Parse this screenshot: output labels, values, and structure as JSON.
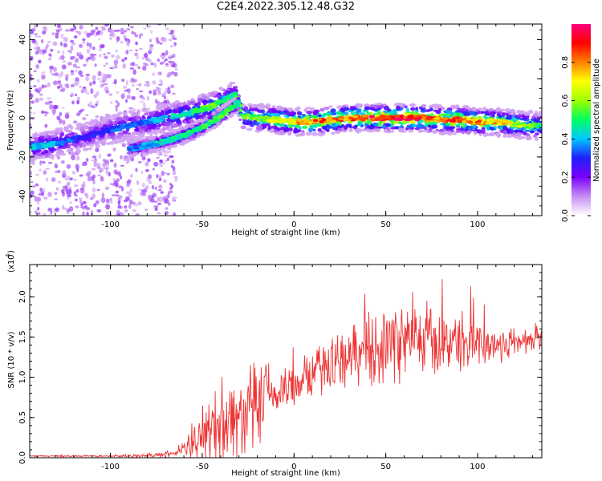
{
  "figure": {
    "title": "C2E4.2022.305.12.48.G32"
  },
  "chart_data": [
    {
      "type": "heatmap",
      "title": "C2E4.2022.305.12.48.G32",
      "xlabel": "Height of straight line (km)",
      "ylabel": "Frequency (Hz)",
      "xlim": [
        -144,
        135
      ],
      "ylim": [
        -50,
        48
      ],
      "xticks": [
        -100,
        -50,
        0,
        50,
        100
      ],
      "yticks": [
        -40,
        -20,
        0,
        20,
        40
      ],
      "colorbar": {
        "label": "Normalized spectral amplitude",
        "range": [
          0.0,
          1.0
        ],
        "ticks": [
          0.0,
          0.2,
          0.4,
          0.6,
          0.8
        ],
        "tick_labels": [
          "0.0",
          "0.2",
          "0.4",
          "0.6",
          "0.8"
        ],
        "colormap": [
          "#ffffff",
          "#c58cf0",
          "#7a00ff",
          "#2020ff",
          "#00c8ff",
          "#00ff60",
          "#a0ff00",
          "#ffff00",
          "#ff8000",
          "#ff0000",
          "#ff0080"
        ]
      },
      "ridge": {
        "x": [
          -144,
          -135,
          -125,
          -115,
          -105,
          -95,
          -85,
          -75,
          -65,
          -55,
          -45,
          -38,
          -32,
          -28,
          -20,
          -10,
          0,
          10,
          20,
          30,
          40,
          50,
          60,
          70,
          80,
          90,
          100,
          110,
          120,
          130,
          135
        ],
        "frequency": [
          -15,
          -14,
          -12,
          -10,
          -7,
          -5,
          -3,
          -1,
          1,
          3,
          6,
          9,
          12,
          1,
          0,
          -1,
          -2,
          -2,
          -1,
          0,
          0,
          0,
          0,
          0,
          -1,
          -1,
          -2,
          -2,
          -3,
          -4,
          -4
        ],
        "amplitude": [
          0.4,
          0.45,
          0.35,
          0.3,
          0.3,
          0.35,
          0.35,
          0.4,
          0.45,
          0.5,
          0.55,
          0.5,
          0.5,
          0.55,
          0.6,
          0.65,
          0.75,
          0.8,
          0.85,
          0.85,
          0.9,
          0.95,
          0.95,
          0.9,
          0.85,
          0.85,
          0.8,
          0.75,
          0.65,
          0.55,
          0.5
        ]
      },
      "secondary_ridge": {
        "x": [
          -90,
          -80,
          -70,
          -60,
          -50,
          -40,
          -30
        ],
        "frequency": [
          -16,
          -14,
          -12,
          -9,
          -5,
          1,
          8
        ],
        "amplitude": [
          0.35,
          0.4,
          0.45,
          0.5,
          0.5,
          0.55,
          0.5
        ]
      }
    },
    {
      "type": "line",
      "xlabel": "Height of straight line (km)",
      "ylabel": "SNR (10 * v/v)",
      "y_multiplier_label": "(x10",
      "y_multiplier_exp": "4",
      "y_multiplier_close": ")",
      "xlim": [
        -144,
        135
      ],
      "ylim": [
        0.0,
        2.4
      ],
      "xticks": [
        -100,
        -50,
        0,
        50,
        100
      ],
      "yticks": [
        0.0,
        0.5,
        1.0,
        1.5,
        2.0
      ],
      "ytick_labels": [
        "0.0",
        "0.5",
        "1.0",
        "1.5",
        "2.0"
      ],
      "color": "#ee3333",
      "series": [
        {
          "x": [
            -144,
            -130,
            -120,
            -110,
            -100,
            -90,
            -80,
            -70,
            -65,
            -60,
            -56,
            -52,
            -50,
            -45,
            -40,
            -35,
            -30,
            -25,
            -20,
            -15,
            -10,
            -5,
            0,
            5,
            10,
            15,
            20,
            25,
            30,
            35,
            40,
            45,
            50,
            55,
            60,
            65,
            70,
            75,
            80,
            85,
            90,
            95,
            100,
            105,
            110,
            115,
            120,
            125,
            130,
            135
          ],
          "mean": [
            0.02,
            0.02,
            0.02,
            0.02,
            0.02,
            0.02,
            0.03,
            0.04,
            0.06,
            0.1,
            0.15,
            0.2,
            0.25,
            0.35,
            0.45,
            0.5,
            0.5,
            0.55,
            0.6,
            0.7,
            0.8,
            0.85,
            0.9,
            1.0,
            1.05,
            1.1,
            1.15,
            1.2,
            1.25,
            1.3,
            1.35,
            1.4,
            1.4,
            1.45,
            1.45,
            1.45,
            1.45,
            1.45,
            1.4,
            1.45,
            1.45,
            1.4,
            1.45,
            1.4,
            1.4,
            1.4,
            1.45,
            1.45,
            1.45,
            1.45
          ],
          "spread": [
            0.01,
            0.01,
            0.01,
            0.01,
            0.01,
            0.02,
            0.02,
            0.03,
            0.04,
            0.05,
            0.15,
            0.25,
            0.35,
            0.45,
            0.55,
            0.5,
            0.45,
            0.5,
            0.55,
            0.45,
            0.35,
            0.3,
            0.3,
            0.25,
            0.3,
            0.3,
            0.3,
            0.3,
            0.35,
            0.35,
            0.4,
            0.45,
            0.45,
            0.45,
            0.45,
            0.4,
            0.4,
            0.4,
            0.35,
            0.35,
            0.35,
            0.35,
            0.3,
            0.25,
            0.25,
            0.2,
            0.2,
            0.15,
            0.15,
            0.15
          ]
        }
      ]
    }
  ]
}
